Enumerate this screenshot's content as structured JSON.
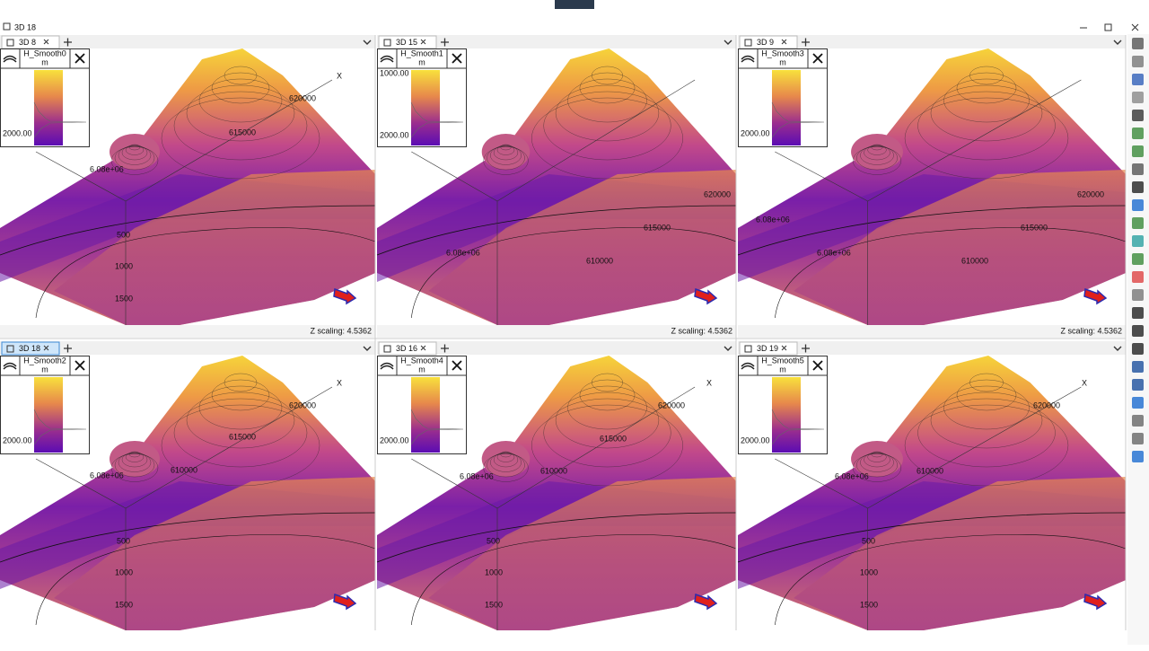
{
  "window": {
    "title": "3D 18"
  },
  "panes": [
    {
      "tab": "3D 8",
      "legend": {
        "name": "H_Smooth0",
        "unit": "m",
        "labels": [
          "2000.00"
        ]
      },
      "annotations": [
        "X",
        "620000",
        "615000",
        "6.08e+06",
        "500",
        "1000",
        "1500"
      ],
      "z_scaling": "Z scaling: 4.5362"
    },
    {
      "tab": "3D 15",
      "legend": {
        "name": "H_Smooth1",
        "unit": "m",
        "labels": [
          "1000.00",
          "2000.00"
        ]
      },
      "annotations": [
        "620000",
        "615000",
        "610000",
        "6.08e+06"
      ],
      "z_scaling": "Z scaling: 4.5362"
    },
    {
      "tab": "3D 9",
      "legend": {
        "name": "H_Smooth3",
        "unit": "m",
        "labels": [
          "2000.00"
        ]
      },
      "annotations": [
        "6.08e+06",
        "620000",
        "615000",
        "610000",
        "6.08e+06"
      ],
      "z_scaling": "Z scaling: 4.5362"
    },
    {
      "tab": "3D 18",
      "legend": {
        "name": "H_Smooth2",
        "unit": "m",
        "labels": [
          "2000.00"
        ]
      },
      "annotations": [
        "X",
        "620000",
        "615000",
        "610000",
        "6.08e+06",
        "500",
        "1000",
        "1500"
      ]
    },
    {
      "tab": "3D 16",
      "legend": {
        "name": "H_Smooth4",
        "unit": "m",
        "labels": [
          "2000.00"
        ]
      },
      "annotations": [
        "X",
        "620000",
        "615000",
        "610000",
        "6.08e+06",
        "500",
        "1000",
        "1500"
      ]
    },
    {
      "tab": "3D 19",
      "legend": {
        "name": "H_Smooth5",
        "unit": "m",
        "labels": [
          "2000.00"
        ]
      },
      "annotations": [
        "X",
        "620000",
        "610000",
        "6.08e+06",
        "500",
        "1000",
        "1500"
      ]
    }
  ]
}
